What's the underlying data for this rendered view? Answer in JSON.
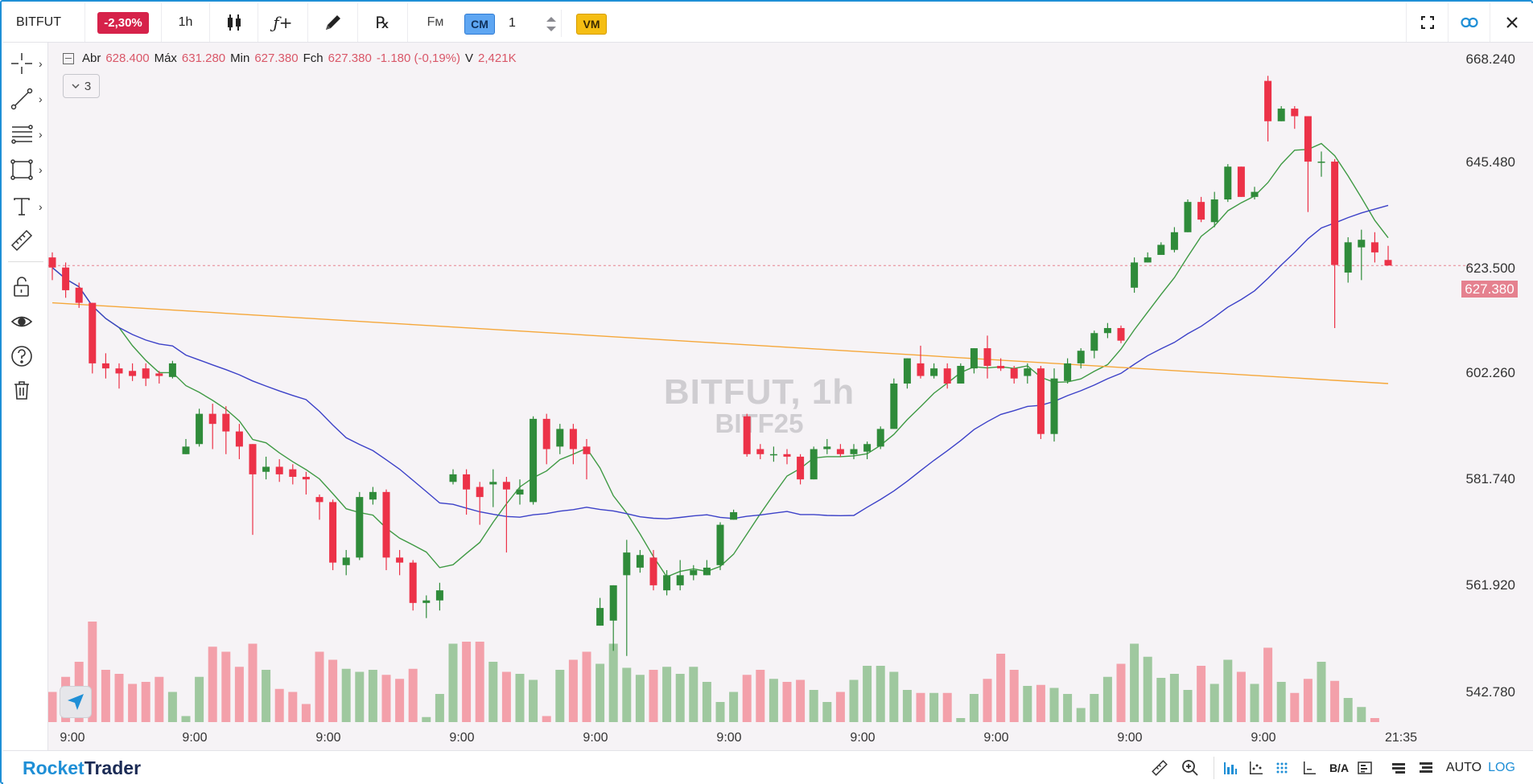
{
  "toolbar": {
    "symbol": "BITFUT",
    "change": "-2,30%",
    "timeframe": "1h",
    "indicators_icon": "fx-icon",
    "reset_icon": "rx-icon",
    "fm_label": "Fм",
    "cm_label": "CM",
    "quantity": "1",
    "vm_label": "VM"
  },
  "chart": {
    "ohlc": {
      "open_label": "Abr",
      "open": "628.400",
      "high_label": "Máx",
      "high": "631.280",
      "low_label": "Min",
      "low": "627.380",
      "close_label": "Fch",
      "close": "627.380",
      "change": "-1.180 (-0,19%)",
      "volume_label": "V",
      "volume": "2,421K"
    },
    "indicator_count": "3",
    "watermark_title": "BITFUT, 1h",
    "watermark_sub": "BITF25",
    "last_price": "627.380",
    "price_ticks": [
      "668.240",
      "645.480",
      "623.500",
      "602.260",
      "581.740",
      "561.920",
      "542.780"
    ],
    "time_ticks": [
      "9:00",
      "9:00",
      "9:00",
      "9:00",
      "9:00",
      "9:00",
      "9:00",
      "9:00",
      "9:00",
      "9:00",
      "21:35"
    ]
  },
  "colors": {
    "up": "#2f8b3a",
    "down": "#ec3248",
    "vol_up": "#9fc89f",
    "vol_down": "#f3a0aa",
    "ma_fast": "#3f9a44",
    "ma_mid": "#3c41c8",
    "ma_slow": "#f5a73a",
    "accent": "#1f8fd6"
  },
  "bottombar": {
    "brand_part1": "Rocket",
    "brand_part2": "Trader",
    "ba_label": "B/A",
    "auto_label": "AUTO",
    "log_label": "LOG"
  },
  "chart_data": {
    "type": "candlestick",
    "interval": "1h",
    "candles": [
      [
        629,
        627,
        630,
        624.5
      ],
      [
        627,
        622.5,
        628,
        621
      ],
      [
        623,
        620,
        624,
        619
      ],
      [
        620,
        608,
        620,
        606
      ],
      [
        608,
        607,
        610,
        605
      ],
      [
        607,
        606,
        608,
        603
      ],
      [
        606.5,
        605.5,
        608,
        604.5
      ],
      [
        607,
        605,
        608,
        603.5
      ],
      [
        606,
        605.5,
        606.5,
        604
      ],
      [
        605.3,
        608,
        608.5,
        605
      ],
      [
        590,
        591.5,
        593,
        590
      ],
      [
        592,
        598,
        599,
        591.5
      ],
      [
        598,
        596,
        600,
        591
      ],
      [
        598,
        594.5,
        599.5,
        590
      ],
      [
        594.5,
        591.5,
        596,
        589
      ],
      [
        592,
        586,
        592,
        574
      ],
      [
        586.5,
        587.5,
        589.5,
        585
      ],
      [
        587.5,
        586,
        589,
        584.5
      ],
      [
        587,
        585.5,
        588,
        584
      ],
      [
        585.5,
        585,
        586.5,
        582
      ],
      [
        581.5,
        580.5,
        582,
        577
      ],
      [
        580.5,
        568.5,
        581,
        567
      ],
      [
        568,
        569.5,
        571,
        566
      ],
      [
        569.5,
        581.5,
        582.5,
        569
      ],
      [
        581,
        582.5,
        583.5,
        580
      ],
      [
        582.5,
        569.5,
        583,
        567
      ],
      [
        569.5,
        568.5,
        571,
        566
      ],
      [
        568.5,
        560.5,
        569,
        559
      ],
      [
        560.5,
        561,
        562,
        557.5
      ],
      [
        561,
        563,
        564.5,
        559
      ],
      [
        584.5,
        586,
        587,
        584
      ],
      [
        586,
        583,
        587,
        578
      ],
      [
        583.5,
        581.5,
        584.5,
        576
      ],
      [
        584,
        584.5,
        587,
        579.5
      ],
      [
        584.5,
        583,
        585.5,
        570.5
      ],
      [
        582,
        583,
        585,
        580
      ],
      [
        580.5,
        597,
        597.5,
        580
      ],
      [
        597,
        591,
        598,
        588
      ],
      [
        591.5,
        595,
        596,
        590
      ],
      [
        595,
        591,
        596,
        588
      ],
      [
        591.5,
        590,
        593,
        585
      ],
      [
        556,
        559.5,
        561.5,
        556
      ],
      [
        557,
        564,
        564,
        551
      ],
      [
        566,
        570.5,
        573,
        550
      ],
      [
        567.5,
        570,
        571,
        566.5
      ],
      [
        569.5,
        564,
        571,
        563
      ],
      [
        563,
        566,
        567,
        562
      ],
      [
        564,
        566,
        569,
        563
      ],
      [
        566,
        567,
        568,
        565
      ],
      [
        566,
        567.5,
        569,
        566
      ],
      [
        568,
        576,
        576.5,
        567
      ],
      [
        577,
        578.5,
        579,
        577
      ],
      [
        597.5,
        590,
        598,
        589.5
      ],
      [
        591,
        590,
        592,
        589
      ],
      [
        590,
        590,
        591.5,
        588.5
      ],
      [
        590,
        589.5,
        591,
        588
      ],
      [
        589.5,
        585,
        590,
        584
      ],
      [
        585,
        591,
        591.5,
        585
      ],
      [
        591,
        591.5,
        593,
        590
      ],
      [
        591,
        590,
        592,
        589.5
      ],
      [
        590,
        591,
        592,
        589
      ],
      [
        590.5,
        592,
        592.5,
        589
      ],
      [
        591.5,
        595,
        595.5,
        591
      ],
      [
        595,
        604,
        605,
        595
      ],
      [
        604,
        609,
        609,
        603
      ],
      [
        608,
        605.5,
        611.5,
        605
      ],
      [
        605.5,
        607,
        608,
        605
      ],
      [
        607,
        604,
        608,
        603
      ],
      [
        604,
        607.5,
        608,
        604
      ],
      [
        607,
        611,
        611,
        606
      ],
      [
        611,
        607.5,
        613.5,
        605
      ],
      [
        607.5,
        607,
        609,
        606.5
      ],
      [
        607,
        605,
        607.5,
        604
      ],
      [
        605.5,
        607,
        608,
        604
      ],
      [
        607,
        594,
        607.5,
        593
      ],
      [
        594,
        605,
        607,
        592.5
      ],
      [
        604.5,
        608,
        609,
        604
      ],
      [
        608,
        610.5,
        611,
        607
      ],
      [
        610.5,
        614,
        614.5,
        609
      ],
      [
        614,
        615,
        616,
        613
      ],
      [
        615,
        612.5,
        615.5,
        612
      ],
      [
        623,
        628,
        629,
        622
      ],
      [
        628,
        629,
        630,
        628
      ],
      [
        629.5,
        631.5,
        632,
        629.5
      ],
      [
        630.5,
        634,
        635,
        630
      ],
      [
        634,
        640,
        640.5,
        634
      ],
      [
        640,
        636.5,
        641,
        636
      ],
      [
        636,
        640.5,
        642,
        635
      ],
      [
        640.5,
        647,
        647.5,
        640
      ],
      [
        647,
        641,
        647,
        641
      ],
      [
        641,
        642,
        643,
        640.5
      ],
      [
        664,
        656,
        665,
        652
      ],
      [
        656,
        658.5,
        659,
        656
      ],
      [
        658.5,
        657,
        659,
        654.5
      ],
      [
        657,
        648,
        657,
        638
      ],
      [
        648,
        648,
        650,
        645
      ],
      [
        648,
        627.5,
        648.5,
        615
      ],
      [
        626,
        632,
        633,
        624
      ],
      [
        631,
        632.5,
        634.5,
        624.5
      ],
      [
        632,
        630,
        634,
        628
      ],
      [
        628.5,
        627.4,
        631.3,
        627.4
      ]
    ],
    "volume_rel": [
      30,
      45,
      60,
      100,
      52,
      48,
      38,
      40,
      45,
      30,
      6,
      45,
      75,
      70,
      55,
      78,
      52,
      33,
      30,
      18,
      70,
      62,
      53,
      50,
      52,
      47,
      43,
      53,
      5,
      28,
      78,
      80,
      80,
      60,
      50,
      48,
      42,
      6,
      52,
      62,
      70,
      58,
      78,
      54,
      47,
      52,
      55,
      48,
      55,
      40,
      20,
      30,
      47,
      52,
      43,
      40,
      42,
      32,
      20,
      30,
      42,
      56,
      56,
      50,
      32,
      29,
      29,
      29,
      4,
      28,
      43,
      68,
      52,
      36,
      37,
      34,
      28,
      14,
      28,
      45,
      58,
      78,
      65,
      44,
      48,
      32,
      56,
      38,
      62,
      50,
      38,
      74,
      40,
      29,
      43,
      60,
      41,
      24,
      15,
      4
    ],
    "moving_averages": [
      {
        "period": "fast",
        "color": "#3f9a44"
      },
      {
        "period": "mid",
        "color": "#3c41c8"
      },
      {
        "period": "slow",
        "color": "#f5a73a"
      }
    ],
    "ylim": [
      542.78,
      668.24
    ],
    "y_ticks": [
      668.24,
      645.48,
      623.5,
      602.26,
      581.74,
      561.92,
      542.78
    ],
    "last_price": 627.38
  }
}
